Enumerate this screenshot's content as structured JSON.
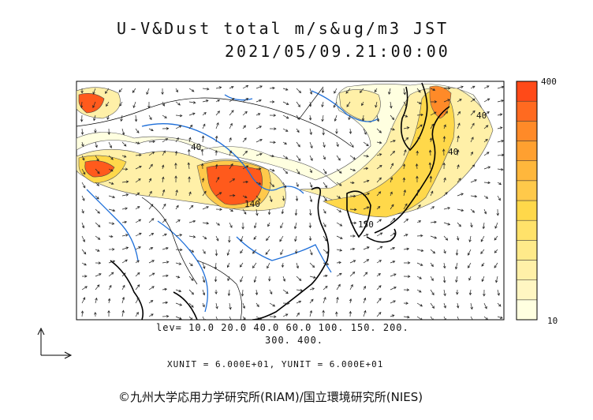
{
  "header": {
    "title": "U-V&Dust total m/s&ug/m3 JST",
    "timestamp": "2021/05/09.21:00:00"
  },
  "legend": {
    "max_label": "400",
    "min_label": "10",
    "levels_line1": "lev= 10.0 20.0 40.0 60.0 100. 150. 200.",
    "levels_line2": "300. 400.",
    "colors": [
      "#ffffe0",
      "#fff6c2",
      "#fff0a8",
      "#ffea8a",
      "#ffe26a",
      "#ffd84a",
      "#ffc94a",
      "#ffb73c",
      "#ffa030",
      "#ff8a28",
      "#ff6a20",
      "#ff4a18"
    ]
  },
  "units": {
    "text": "XUNIT = 6.000E+01, YUNIT = 6.000E+01"
  },
  "contour_labels": [
    "40",
    "40",
    "140",
    "40",
    "150"
  ],
  "footer": {
    "copyright": "©九州大学応用力学研究所(RIAM)/国立環境研究所(NIES)"
  }
}
